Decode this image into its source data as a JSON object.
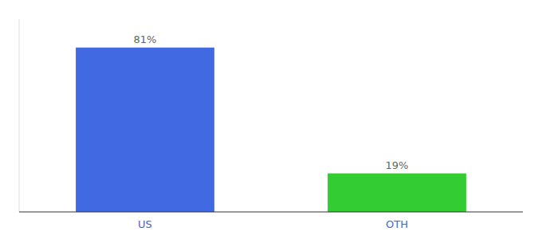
{
  "chart_data": {
    "type": "bar",
    "categories": [
      "US",
      "OTH"
    ],
    "values": [
      81,
      19
    ],
    "value_labels": [
      "81%",
      "19%"
    ],
    "colors": [
      "#4169e1",
      "#33cc33"
    ],
    "ylim": [
      0,
      95
    ],
    "data_labels": true,
    "tick_labels": "x"
  }
}
